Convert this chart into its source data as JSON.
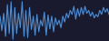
{
  "values": [
    55,
    30,
    60,
    20,
    75,
    25,
    80,
    15,
    70,
    25,
    60,
    35,
    80,
    20,
    65,
    18,
    70,
    32,
    55,
    22,
    58,
    28,
    48,
    38,
    62,
    22,
    57,
    33,
    55,
    28,
    52,
    40,
    48,
    35,
    55,
    45,
    60,
    52,
    65,
    58,
    72,
    50,
    68,
    55,
    70,
    58,
    72,
    60,
    65,
    55,
    62,
    52,
    58,
    54,
    65,
    58,
    70,
    62,
    68,
    58
  ],
  "line_color": "#4a90d9",
  "bg_color": "#1a1a2e",
  "linewidth": 0.8,
  "fill_alpha": 0.0
}
